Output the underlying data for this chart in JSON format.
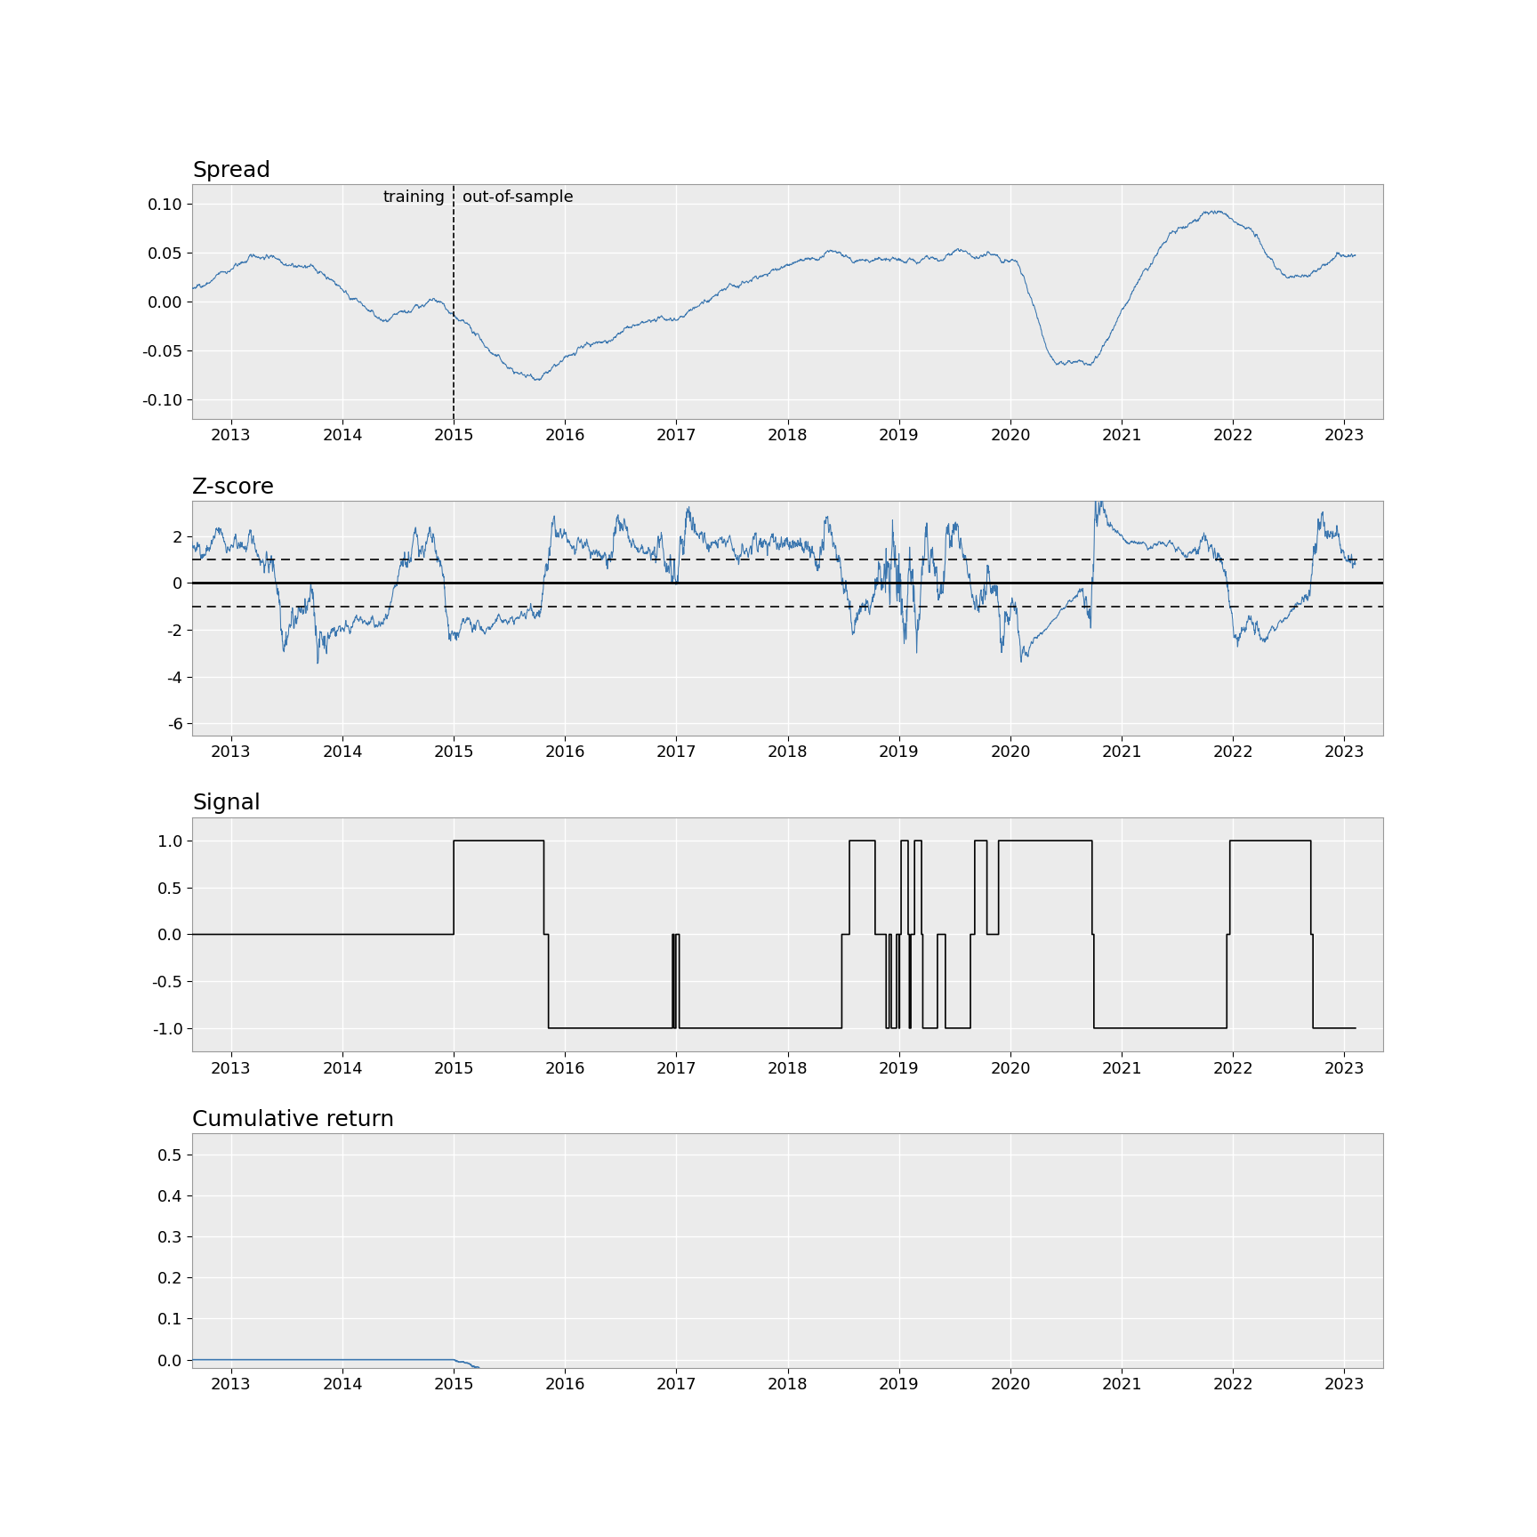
{
  "title_spread": "Spread",
  "title_zscore": "Z-score",
  "title_signal": "Signal",
  "title_cumret": "Cumulative return",
  "spread_ylim": [
    -0.12,
    0.12
  ],
  "zscore_ylim": [
    -6.5,
    3.5
  ],
  "signal_ylim": [
    -1.25,
    1.25
  ],
  "cumret_ylim": [
    -0.02,
    0.55
  ],
  "line_color": "#3A76AF",
  "signal_color": "black",
  "vline_x": 2015.0,
  "training_label": "training",
  "oos_label": "out-of-sample",
  "spread_yticks": [
    -0.1,
    -0.05,
    0.0,
    0.05,
    0.1
  ],
  "zscore_yticks": [
    -6,
    -4,
    -2,
    0,
    2
  ],
  "signal_yticks": [
    -1.0,
    -0.5,
    0.0,
    0.5,
    1.0
  ],
  "cumret_yticks": [
    0.0,
    0.1,
    0.2,
    0.3,
    0.4,
    0.5
  ],
  "xticks": [
    2013,
    2014,
    2015,
    2016,
    2017,
    2018,
    2019,
    2020,
    2021,
    2022,
    2023
  ],
  "xlim": [
    2012.65,
    2023.35
  ],
  "background_color": "#EBEBEB",
  "grid_color": "white",
  "title_fontsize": 18,
  "tick_fontsize": 13,
  "label_fontsize": 13
}
